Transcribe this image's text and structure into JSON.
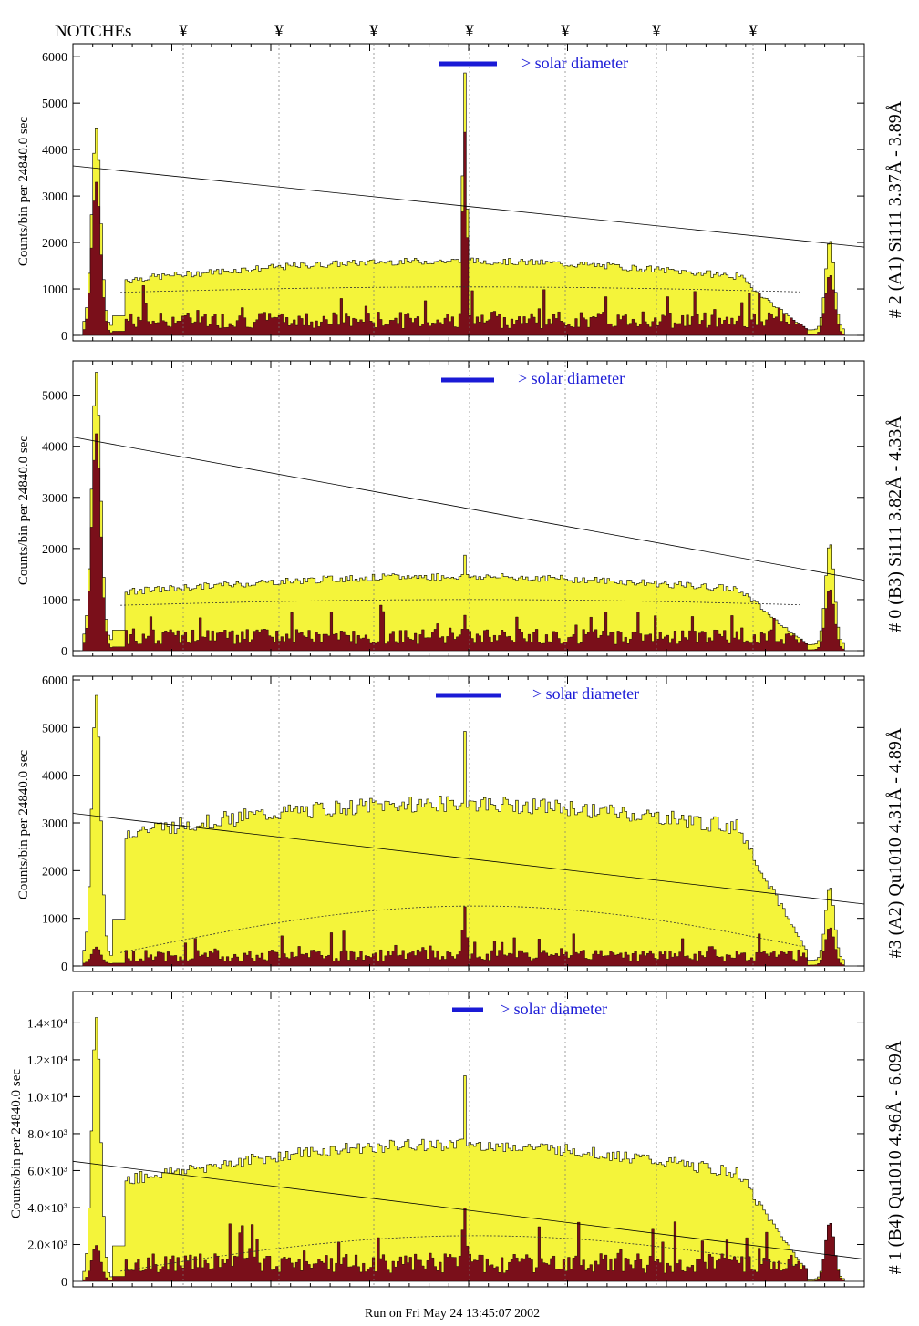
{
  "header": {
    "notches_label": "NOTCHEs",
    "notch_symbol": "¥",
    "notch_count": 7
  },
  "footer": {
    "run_text": "Run on Fri May 24 13:45:07 2002"
  },
  "colors": {
    "fill": "#f4f43a",
    "dark": "#7a0f1a",
    "solar": "#1a1ad6"
  },
  "chart_data": [
    {
      "type": "bar",
      "title": "# 2 (A1) Si111 3.37Å - 3.89Å",
      "ylabel": "Counts/bin per 24840.0 sec",
      "ylim": [
        0,
        6200
      ],
      "yticks": [
        0,
        1000,
        2000,
        3000,
        4000,
        5000,
        6000
      ],
      "ytick_labels": [
        "0",
        "1000",
        "2000",
        "3000",
        "4000",
        "5000",
        "6000"
      ],
      "annotation": "> solar diameter",
      "envelope": {
        "edge_peak": 4250,
        "plateau_left": 1200,
        "plateau_right": 1600,
        "center_peak": 5680,
        "right_edge_peak": 1950
      },
      "dark": {
        "edge_peak": 3250,
        "level": 300,
        "center_peak": 4400,
        "right_edge_peak": 1300
      },
      "fit_line": [
        3650,
        1900
      ]
    },
    {
      "type": "bar",
      "title": "# 0 (B3) Si111 3.82Å - 4.33Å",
      "ylabel": "Counts/bin per 24840.0 sec",
      "ylim": [
        0,
        5600
      ],
      "yticks": [
        0,
        1000,
        2000,
        3000,
        4000,
        5000
      ],
      "ytick_labels": [
        "0",
        "1000",
        "2000",
        "3000",
        "4000",
        "5000"
      ],
      "annotation": "> solar diameter",
      "envelope": {
        "edge_peak": 5250,
        "plateau_left": 1150,
        "plateau_right": 1450,
        "center_peak": 1880,
        "right_edge_peak": 2000
      },
      "dark": {
        "edge_peak": 4200,
        "level": 250,
        "center_peak": 700,
        "right_edge_peak": 1200
      },
      "fit_line": [
        4180,
        1380
      ]
    },
    {
      "type": "bar",
      "title": "#3 (A2) Qu1010 4.31Å - 4.89Å",
      "ylabel": "Counts/bin per 24840.0 sec",
      "ylim": [
        0,
        6000
      ],
      "yticks": [
        0,
        1000,
        2000,
        3000,
        4000,
        5000,
        6000
      ],
      "ytick_labels": [
        "0",
        "1000",
        "2000",
        "3000",
        "4000",
        "5000",
        "6000"
      ],
      "annotation": "> solar diameter",
      "envelope": {
        "edge_peak": 5480,
        "plateau_left": 2800,
        "plateau_right": 3400,
        "center_peak": 4950,
        "right_edge_peak": 1550
      },
      "dark": {
        "edge_peak": 350,
        "level": 200,
        "center_peak": 1250,
        "right_edge_peak": 800
      },
      "fit_line": [
        3200,
        1300
      ]
    },
    {
      "type": "bar",
      "title": "# 1 (B4) Qu1010 4.96Å - 6.09Å",
      "ylabel": "Counts/bin per 24840.0 sec",
      "ylim": [
        0,
        15500
      ],
      "yticks": [
        2000,
        4000,
        6000,
        8000,
        10000,
        12000,
        14000
      ],
      "ytick_labels": [
        "2.0×10³",
        "4.0×10³",
        "6.0×10³",
        "8.0×10³",
        "1.0×10⁴",
        "1.2×10⁴",
        "1.4×10⁴"
      ],
      "annotation": "> solar diameter",
      "envelope": {
        "edge_peak": 14100,
        "plateau_left": 5500,
        "plateau_right": 7400,
        "center_peak": 11200,
        "right_edge_peak": 3100
      },
      "dark": {
        "edge_peak": 1900,
        "level": 900,
        "center_peak": 4000,
        "right_edge_peak": 3300
      },
      "fit_line": [
        6500,
        1200
      ]
    }
  ]
}
